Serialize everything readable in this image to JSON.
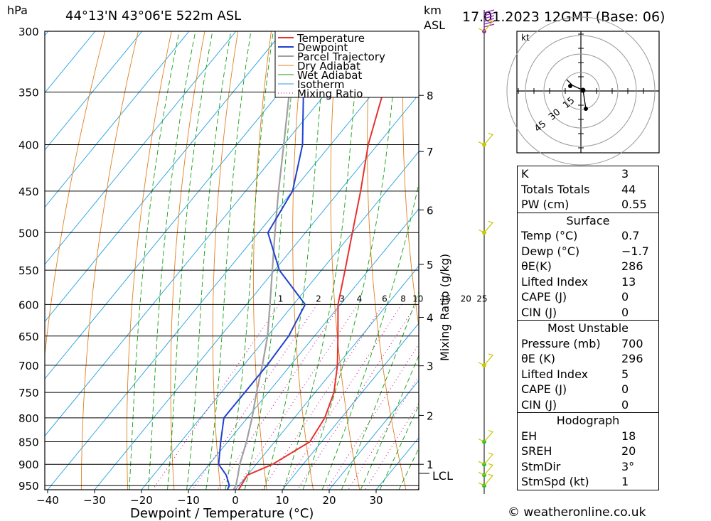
{
  "header": {
    "location": "44°13'N 43°06'E 522m ASL",
    "datetime": "17.01.2023 12GMT (Base: 06)"
  },
  "labels": {
    "hpa": "hPa",
    "km": "km",
    "asl": "ASL",
    "xlabel": "Dewpoint / Temperature (°C)",
    "mixlabel": "Mixing Ratio (g/kg)",
    "lcl": "LCL",
    "hodo_unit": "kt"
  },
  "colors": {
    "temperature": "#e83030",
    "dewpoint": "#2040d0",
    "parcel": "#a0a0a0",
    "dry_adiabat": "#e08020",
    "wet_adiabat": "#10a010",
    "isotherm": "#20a0e0",
    "mixing_ratio": "#d020a0",
    "wind": "#c8c800"
  },
  "chart_data": {
    "type": "skew-t",
    "pressure_ticks": [
      "300",
      "350",
      "400",
      "450",
      "500",
      "550",
      "600",
      "650",
      "700",
      "750",
      "800",
      "850",
      "900",
      "950"
    ],
    "temp_ticks": [
      "−40",
      "−30",
      "−20",
      "−10",
      "0",
      "10",
      "20",
      "30"
    ],
    "km_ticks": [
      {
        "label": "8",
        "p": 353
      },
      {
        "label": "7",
        "p": 407
      },
      {
        "label": "6",
        "p": 472
      },
      {
        "label": "5",
        "p": 542
      },
      {
        "label": "4",
        "p": 620
      },
      {
        "label": "3",
        "p": 701
      },
      {
        "label": "2",
        "p": 795
      },
      {
        "label": "1",
        "p": 900
      }
    ],
    "lcl_pressure": 921,
    "mixing_ratio_values": [
      "1",
      "2",
      "3",
      "4",
      "6",
      "8",
      "10",
      "15",
      "20",
      "25"
    ],
    "legend": [
      "Temperature",
      "Dewpoint",
      "Parcel Trajectory",
      "Dry Adiabat",
      "Wet Adiabat",
      "Isotherm",
      "Mixing Ratio"
    ],
    "temperature": [
      [
        960,
        0.7
      ],
      [
        950,
        0.5
      ],
      [
        925,
        0
      ],
      [
        900,
        3.5
      ],
      [
        850,
        7.5
      ],
      [
        800,
        6.5
      ],
      [
        750,
        4
      ],
      [
        700,
        0
      ],
      [
        650,
        -5
      ],
      [
        600,
        -10.5
      ],
      [
        550,
        -15
      ],
      [
        500,
        -20
      ],
      [
        450,
        -25.5
      ],
      [
        400,
        -32
      ],
      [
        350,
        -38
      ],
      [
        300,
        -44
      ]
    ],
    "dewpoint": [
      [
        960,
        -1.7
      ],
      [
        950,
        -2
      ],
      [
        925,
        -4.5
      ],
      [
        900,
        -8
      ],
      [
        850,
        -11.5
      ],
      [
        800,
        -15
      ],
      [
        750,
        -15
      ],
      [
        700,
        -15
      ],
      [
        650,
        -15.5
      ],
      [
        600,
        -17.5
      ],
      [
        550,
        -29
      ],
      [
        500,
        -38
      ],
      [
        450,
        -40
      ],
      [
        400,
        -46
      ],
      [
        350,
        -55
      ],
      [
        300,
        -58
      ]
    ],
    "parcel": [
      [
        960,
        -0.4
      ],
      [
        950,
        -0.6
      ],
      [
        925,
        -2
      ],
      [
        900,
        -3.5
      ],
      [
        850,
        -6
      ],
      [
        800,
        -9
      ],
      [
        750,
        -12.5
      ],
      [
        700,
        -16
      ],
      [
        650,
        -20
      ],
      [
        600,
        -25
      ],
      [
        550,
        -30.5
      ],
      [
        500,
        -36.5
      ],
      [
        450,
        -43
      ],
      [
        400,
        -50
      ],
      [
        350,
        -58
      ],
      [
        300,
        -66
      ]
    ],
    "wind_markers": [
      300,
      400,
      500,
      700,
      850,
      900,
      925,
      950
    ],
    "hodograph_rings": [
      "15",
      "30",
      "45"
    ]
  },
  "indices": [
    {
      "k": "K",
      "v": "3"
    },
    {
      "k": "Totals Totals",
      "v": "44"
    },
    {
      "k": "PW (cm)",
      "v": "0.55"
    }
  ],
  "surface": {
    "title": "Surface",
    "rows": [
      {
        "k": "Temp (°C)",
        "v": "0.7"
      },
      {
        "k": "Dewp (°C)",
        "v": "−1.7"
      },
      {
        "k": "θE(K)",
        "v": "286"
      },
      {
        "k": "Lifted Index",
        "v": "13"
      },
      {
        "k": "CAPE (J)",
        "v": "0"
      },
      {
        "k": "CIN (J)",
        "v": "0"
      }
    ]
  },
  "most_unstable": {
    "title": "Most Unstable",
    "rows": [
      {
        "k": "Pressure (mb)",
        "v": "700"
      },
      {
        "k": "θE (K)",
        "v": "296"
      },
      {
        "k": "Lifted Index",
        "v": "5"
      },
      {
        "k": "CAPE (J)",
        "v": "0"
      },
      {
        "k": "CIN (J)",
        "v": "0"
      }
    ]
  },
  "hodograph": {
    "title": "Hodograph",
    "rows": [
      {
        "k": "EH",
        "v": "18"
      },
      {
        "k": "SREH",
        "v": "20"
      },
      {
        "k": "StmDir",
        "v": "3°"
      },
      {
        "k": "StmSpd (kt)",
        "v": "1"
      }
    ]
  },
  "watermark": "© weatheronline.co.uk"
}
